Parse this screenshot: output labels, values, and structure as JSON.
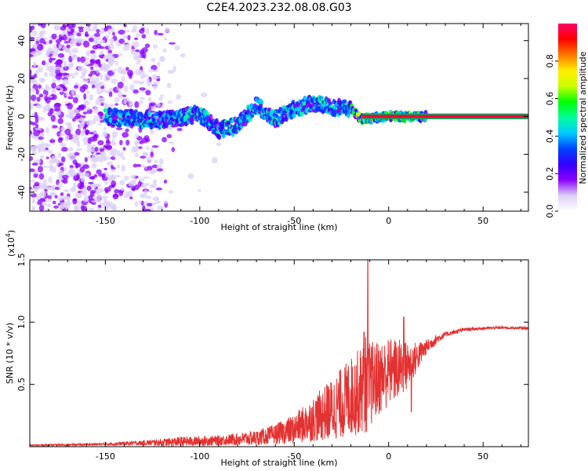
{
  "title": "C2E4.2023.232.08.08.G03",
  "colors": {
    "accent": "#e33232",
    "axis": "#000000"
  },
  "chart_data": [
    {
      "type": "heatmap",
      "title": "C2E4.2023.232.08.08.G03",
      "xlabel": "Height of straight line (km)",
      "ylabel": "Frequency (Hz)",
      "xlim": [
        -190,
        74
      ],
      "ylim": [
        -50,
        49
      ],
      "xticks": [
        -150,
        -100,
        -50,
        0,
        50
      ],
      "yticks": [
        -40,
        -20,
        0,
        20,
        40
      ],
      "colorbar": {
        "label": "Normalized spectral amplitude",
        "range": [
          0,
          1
        ],
        "ticks": [
          "0.0",
          "0.2",
          "0.4",
          "0.6",
          "0.8"
        ],
        "colors": [
          "#ffffff",
          "#dcd0f7",
          "#8b00ff",
          "#3300ff",
          "#0044ff",
          "#00ccff",
          "#00ff99",
          "#00ff00",
          "#ccff00",
          "#ffee00",
          "#ff7700",
          "#ff0000",
          "#ff0066"
        ]
      },
      "signal": {
        "x": [
          -190,
          -150,
          -140,
          -120,
          -100,
          -90,
          -80,
          -70,
          -60,
          -50,
          -40,
          -30,
          -20,
          -15,
          -10,
          0,
          10,
          20,
          40,
          74
        ],
        "y": [
          0,
          0,
          -1,
          -2,
          1,
          -7,
          -5,
          6,
          -1,
          4,
          7,
          5,
          4,
          -1,
          -1,
          0,
          0,
          0,
          0,
          0
        ]
      }
    },
    {
      "type": "line",
      "xlabel": "Height of straight line (km)",
      "ylabel": "SNR (10 * v/v)",
      "multiplier": "(x10",
      "multiplier_exp": "4",
      "multiplier_close": ")",
      "xlim": [
        -190,
        74
      ],
      "ylim": [
        0,
        1.5
      ],
      "xticks": [
        -150,
        -100,
        -50,
        0,
        50
      ],
      "yticks": [
        0.5,
        1.0,
        1.5
      ],
      "ytick_labels": [
        "0.5",
        "1.0",
        "1.5"
      ],
      "series": [
        {
          "color": "#e33232",
          "envelope": {
            "x": [
              -190,
              -150,
              -130,
              -110,
              -90,
              -70,
              -60,
              -50,
              -40,
              -30,
              -20,
              -15,
              -12,
              -10,
              -5,
              0,
              5,
              10,
              15,
              20,
              25,
              30,
              40,
              50,
              60,
              74
            ],
            "base": [
              0.01,
              0.02,
              0.03,
              0.04,
              0.05,
              0.07,
              0.1,
              0.14,
              0.22,
              0.3,
              0.4,
              0.45,
              0.5,
              0.5,
              0.55,
              0.6,
              0.62,
              0.65,
              0.72,
              0.8,
              0.86,
              0.9,
              0.94,
              0.95,
              0.955,
              0.95
            ],
            "amp": [
              0.005,
              0.01,
              0.02,
              0.04,
              0.04,
              0.06,
              0.08,
              0.12,
              0.18,
              0.25,
              0.32,
              0.35,
              0.4,
              0.35,
              0.3,
              0.28,
              0.25,
              0.2,
              0.12,
              0.06,
              0.04,
              0.02,
              0.015,
              0.012,
              0.01,
              0.01
            ]
          },
          "peaks": [
            {
              "x": -11,
              "y": 1.5
            },
            {
              "x": -13,
              "y": 0.92
            },
            {
              "x": 8,
              "y": 1.04
            },
            {
              "x": 2,
              "y": 0.72
            },
            {
              "x": 12,
              "y": 0.28
            }
          ]
        }
      ]
    }
  ]
}
